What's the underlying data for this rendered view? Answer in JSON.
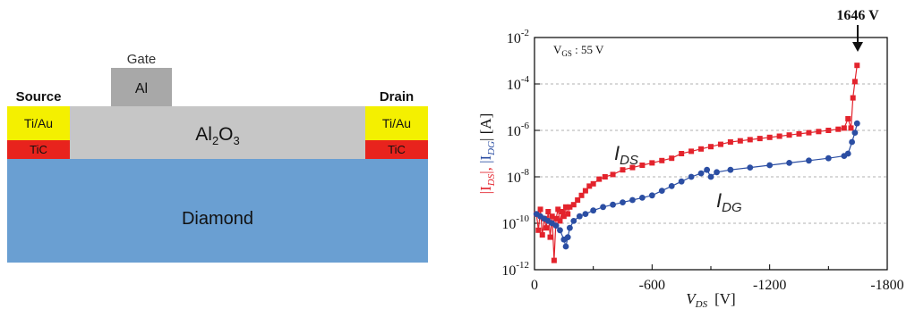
{
  "device": {
    "gate_label": "Gate",
    "gate_metal": "Al",
    "source_label": "Source",
    "drain_label": "Drain",
    "contact_metal": "Ti/Au",
    "carbide": "TiC",
    "dielectric_base": "Al",
    "dielectric_sub2": "2",
    "dielectric_o": "O",
    "dielectric_sub3": "3",
    "substrate": "Diamond",
    "colors": {
      "substrate": "#6a9fd2",
      "dielectric": "#c6c6c6",
      "gate": "#a8a8a8",
      "contact": "#f4f000",
      "carbide": "#e8231d"
    }
  },
  "chart_data": {
    "type": "scatter",
    "x_scale": "linear",
    "y_scale": "log",
    "xlim": [
      0,
      -1800
    ],
    "ylim": [
      1e-12,
      0.01
    ],
    "x_ticks": [
      "0",
      "-600",
      "-1200",
      "-1800"
    ],
    "y_tick_exponents": [
      "-12",
      "-10",
      "-8",
      "-6",
      "-4",
      "-2"
    ],
    "y_tick_base": "10",
    "grid": true,
    "xlabel_main": "V",
    "xlabel_sub": "DS",
    "xlabel_unit": "[V]",
    "ylabel_ids": "|I",
    "ylabel_ids_sub": "DS",
    "ylabel_sep": "|, ",
    "ylabel_idg": "|I",
    "ylabel_idg_sub": "DG",
    "ylabel_unit": "| [A]",
    "annotation_vgs_main": "V",
    "annotation_vgs_sub": "GS",
    "annotation_vgs_value": " : 55 V",
    "breakdown_label": "1646 V",
    "series": [
      {
        "name": "I_DS",
        "label_main": "I",
        "label_sub": "DS",
        "color": "#e3232c",
        "marker": "square",
        "points": [
          [
            -10,
            -9.6
          ],
          [
            -20,
            -10.3
          ],
          [
            -30,
            -9.4
          ],
          [
            -40,
            -10.5
          ],
          [
            -50,
            -9.8
          ],
          [
            -60,
            -10.2
          ],
          [
            -70,
            -9.5
          ],
          [
            -80,
            -10.6
          ],
          [
            -90,
            -9.7
          ],
          [
            -100,
            -11.6
          ],
          [
            -110,
            -9.8
          ],
          [
            -120,
            -9.4
          ],
          [
            -130,
            -9.9
          ],
          [
            -140,
            -9.5
          ],
          [
            -150,
            -9.7
          ],
          [
            -160,
            -9.3
          ],
          [
            -170,
            -9.6
          ],
          [
            -180,
            -9.3
          ],
          [
            -200,
            -9.2
          ],
          [
            -220,
            -9.0
          ],
          [
            -240,
            -8.8
          ],
          [
            -260,
            -8.6
          ],
          [
            -280,
            -8.4
          ],
          [
            -300,
            -8.3
          ],
          [
            -330,
            -8.1
          ],
          [
            -360,
            -8.0
          ],
          [
            -400,
            -7.9
          ],
          [
            -450,
            -7.7
          ],
          [
            -500,
            -7.6
          ],
          [
            -550,
            -7.5
          ],
          [
            -600,
            -7.4
          ],
          [
            -650,
            -7.3
          ],
          [
            -700,
            -7.2
          ],
          [
            -750,
            -7.0
          ],
          [
            -800,
            -6.9
          ],
          [
            -850,
            -6.8
          ],
          [
            -900,
            -6.7
          ],
          [
            -950,
            -6.6
          ],
          [
            -1000,
            -6.5
          ],
          [
            -1050,
            -6.45
          ],
          [
            -1100,
            -6.4
          ],
          [
            -1150,
            -6.35
          ],
          [
            -1200,
            -6.3
          ],
          [
            -1250,
            -6.25
          ],
          [
            -1300,
            -6.2
          ],
          [
            -1350,
            -6.15
          ],
          [
            -1400,
            -6.1
          ],
          [
            -1450,
            -6.05
          ],
          [
            -1500,
            -6.0
          ],
          [
            -1550,
            -5.95
          ],
          [
            -1580,
            -5.9
          ],
          [
            -1600,
            -5.5
          ],
          [
            -1615,
            -5.9
          ],
          [
            -1625,
            -4.6
          ],
          [
            -1635,
            -3.9
          ],
          [
            -1646,
            -3.2
          ]
        ]
      },
      {
        "name": "I_DG",
        "label_main": "I",
        "label_sub": "DG",
        "color": "#2b4ea3",
        "marker": "circle",
        "points": [
          [
            -10,
            -9.6
          ],
          [
            -30,
            -9.7
          ],
          [
            -50,
            -9.8
          ],
          [
            -70,
            -9.9
          ],
          [
            -90,
            -10.0
          ],
          [
            -110,
            -10.1
          ],
          [
            -130,
            -10.3
          ],
          [
            -150,
            -10.7
          ],
          [
            -160,
            -11.0
          ],
          [
            -170,
            -10.6
          ],
          [
            -180,
            -10.2
          ],
          [
            -200,
            -9.9
          ],
          [
            -230,
            -9.7
          ],
          [
            -260,
            -9.6
          ],
          [
            -300,
            -9.45
          ],
          [
            -350,
            -9.3
          ],
          [
            -400,
            -9.2
          ],
          [
            -450,
            -9.1
          ],
          [
            -500,
            -9.0
          ],
          [
            -550,
            -8.9
          ],
          [
            -600,
            -8.8
          ],
          [
            -650,
            -8.6
          ],
          [
            -700,
            -8.4
          ],
          [
            -750,
            -8.2
          ],
          [
            -800,
            -8.0
          ],
          [
            -850,
            -7.85
          ],
          [
            -880,
            -7.7
          ],
          [
            -900,
            -8.0
          ],
          [
            -930,
            -7.8
          ],
          [
            -1000,
            -7.7
          ],
          [
            -1100,
            -7.6
          ],
          [
            -1200,
            -7.5
          ],
          [
            -1300,
            -7.4
          ],
          [
            -1400,
            -7.3
          ],
          [
            -1500,
            -7.2
          ],
          [
            -1580,
            -7.1
          ],
          [
            -1600,
            -7.0
          ],
          [
            -1620,
            -6.5
          ],
          [
            -1635,
            -6.1
          ],
          [
            -1646,
            -5.7
          ]
        ]
      }
    ]
  }
}
